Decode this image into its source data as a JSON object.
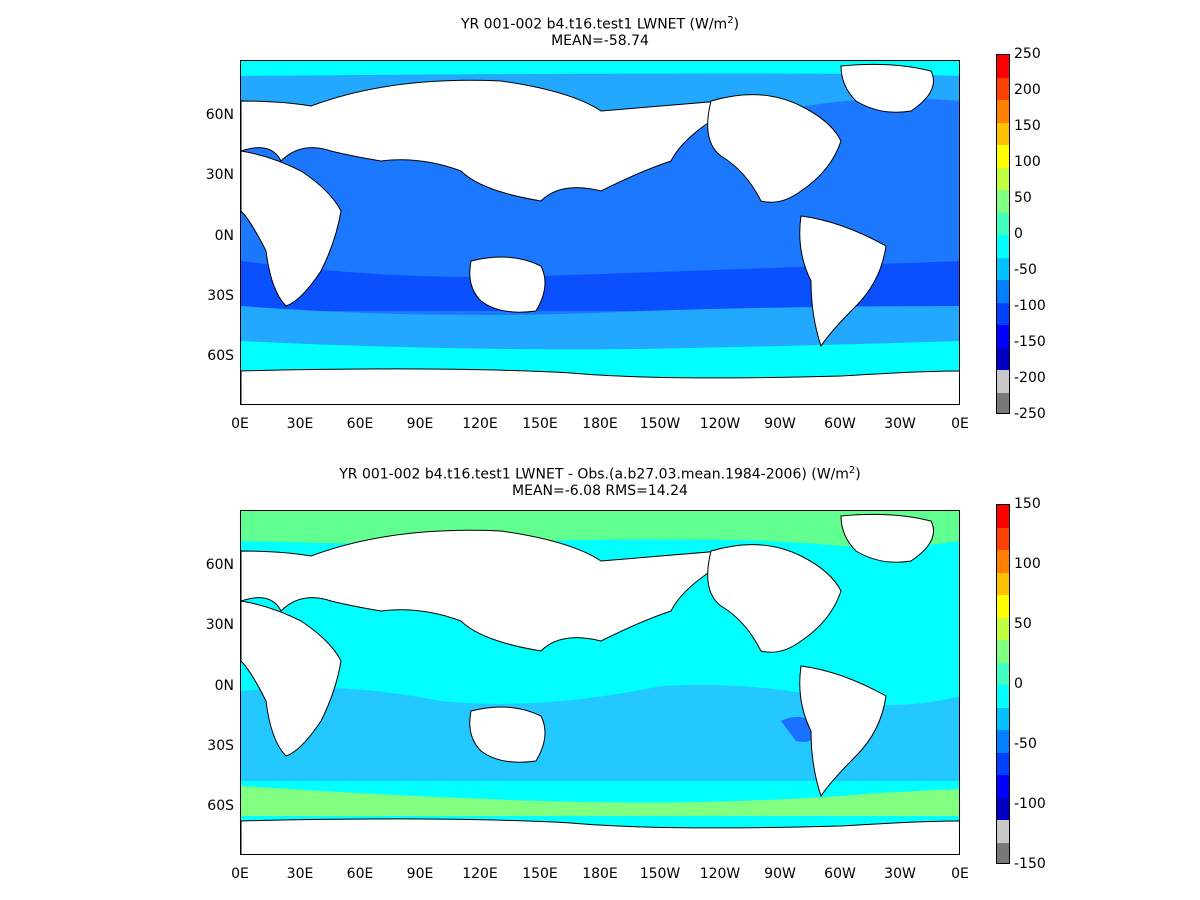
{
  "panels": [
    {
      "id": "top",
      "title_main": "YR 001-002 b4.t16.test1  LWNET (W/m",
      "title_sup": "2",
      "title_end": ")",
      "subtitle": "MEAN=-58.74",
      "colorbar_labels": [
        "250",
        "200",
        "150",
        "100",
        "50",
        "0",
        "-50",
        "-100",
        "-150",
        "-200",
        "-250"
      ]
    },
    {
      "id": "bot",
      "title_main": "YR 001-002 b4.t16.test1 LWNET - Obs.(a.b27.03.mean.1984-2006) (W/m",
      "title_sup": "2",
      "title_end": ")",
      "subtitle": "MEAN=-6.08 RMS=14.24",
      "colorbar_labels": [
        "150",
        "100",
        "50",
        "0",
        "-50",
        "-100",
        "-150"
      ]
    }
  ],
  "lat_labels": [
    "60N",
    "30N",
    "0N",
    "30S",
    "60S"
  ],
  "lon_labels": [
    "0E",
    "30E",
    "60E",
    "90E",
    "120E",
    "150E",
    "180E",
    "150W",
    "120W",
    "90W",
    "60W",
    "30W",
    "0E"
  ],
  "colormap": [
    "#ff0000",
    "#ff4000",
    "#ff8000",
    "#ffc000",
    "#ffff00",
    "#c0ff40",
    "#80ff80",
    "#40ffc0",
    "#00ffff",
    "#00c0ff",
    "#0080ff",
    "#0040ff",
    "#0000ff",
    "#0000c0",
    "#c8c8c8",
    "#787878"
  ],
  "ocean_colors": {
    "deep": "#0050ff",
    "mid": "#1a70ff",
    "light": "#22a8ff",
    "cyan": "#00ffff",
    "green": "#60ff90",
    "yellow": "#a0ff60"
  }
}
